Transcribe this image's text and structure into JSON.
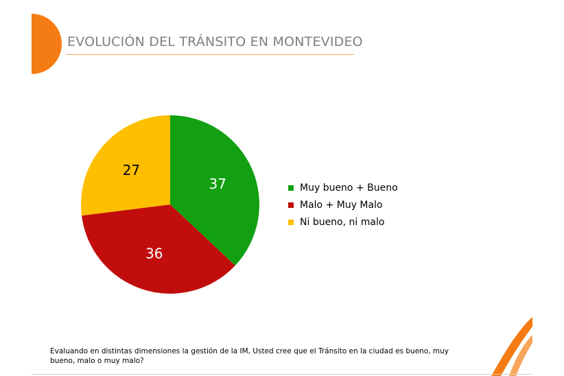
{
  "header": {
    "title": "EVOLUCIÓN DEL TRÁNSITO EN MONTEVIDEO"
  },
  "colors": {
    "accent": "#f57c14",
    "title": "#7f7f7f"
  },
  "chart_data": {
    "type": "pie",
    "slices": [
      {
        "name": "Muy bueno + Bueno",
        "value": 37,
        "label": "37",
        "color": "#12a012"
      },
      {
        "name": "Malo + Muy Malo",
        "value": 36,
        "label": "36",
        "color": "#c20d0d"
      },
      {
        "name": "Ni bueno, ni malo",
        "value": 27,
        "label": "27",
        "color": "#fdbf00"
      }
    ],
    "legend_position": "right"
  },
  "footnote": "Evaluando en distintas dimensiones la gestión de la IM, Usted cree que el Tránsito en la ciudad es bueno, muy bueno, malo o muy malo?"
}
